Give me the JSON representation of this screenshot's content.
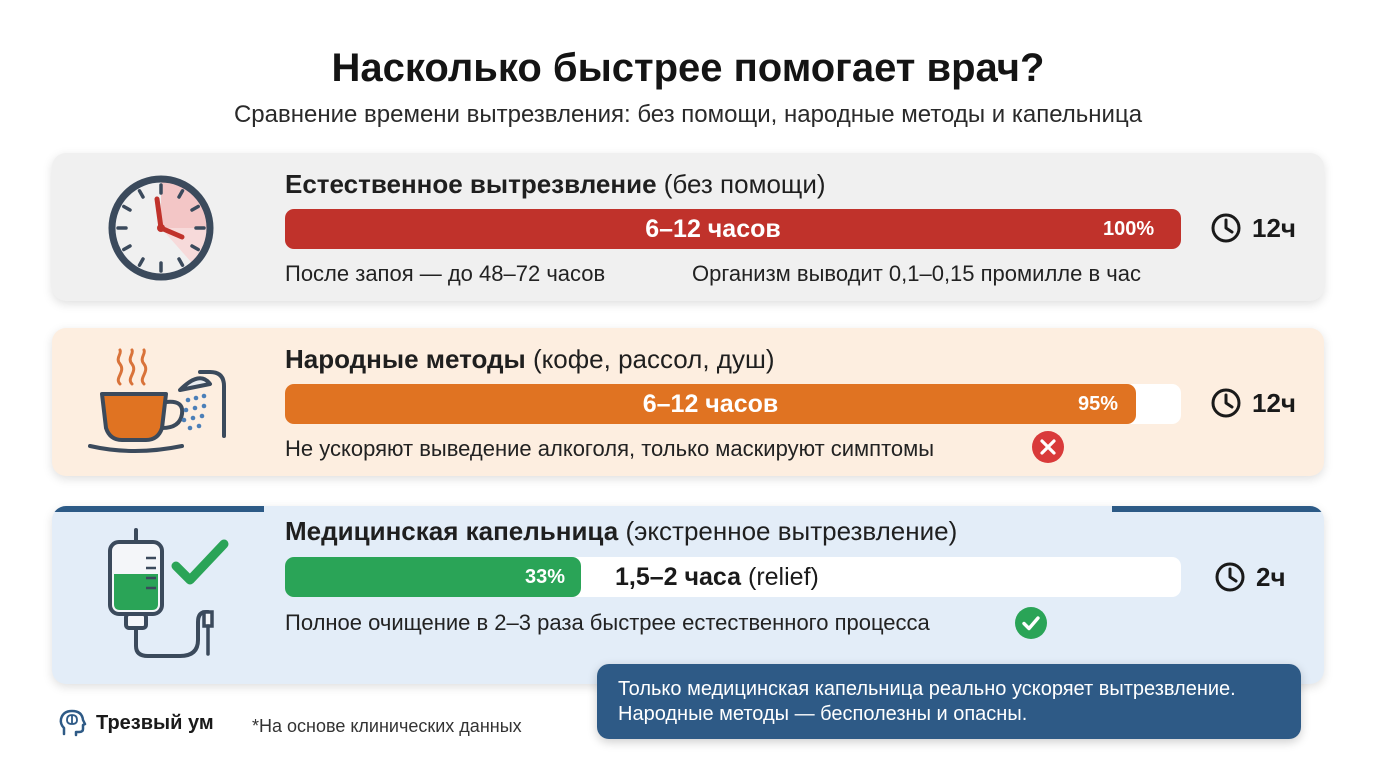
{
  "header": {
    "title": "Насколько быстрее помогает врач?",
    "subtitle": "Сравнение времени вытрезвления: без помощи, народные методы и капельница"
  },
  "rows": [
    {
      "title_bold": "Естественное вытрезвление",
      "title_rest": "(без помощи)",
      "bar_label": "6–12 часов",
      "percent_label": "100%",
      "percent": 100,
      "color": "#c0322b",
      "time": "12ч",
      "note_left": "После запоя — до 48–72 часов",
      "note_right": "Организм выводит 0,1–0,15 промилле в час",
      "icon": "clock-icon"
    },
    {
      "title_bold": "Народные методы",
      "title_rest": "(кофе, рассол, душ)",
      "bar_label": "6–12 часов",
      "percent_label": "95%",
      "percent": 95,
      "color": "#e07322",
      "time": "12ч",
      "note": "Не ускоряют выведение алкоголя, только маскируют симптомы",
      "status_icon": "cross-icon",
      "icon": "coffee-shower-icon"
    },
    {
      "title_bold": "Медицинская капельница",
      "title_rest": "(экстренное вытрезвление)",
      "bar_label_bold": "1,5–2 часа",
      "bar_label_rest": "(relief)",
      "percent_label": "33%",
      "percent": 33,
      "color": "#2aa457",
      "time": "2ч",
      "note": "Полное очищение в 2–3 раза быстрее естественного процесса",
      "status_icon": "check-icon",
      "icon": "iv-drip-icon"
    }
  ],
  "callout": {
    "line1": "Только медицинская капельница реально ускоряет вытрезвление.",
    "line2": "Народные методы — бесполезны и опасны."
  },
  "footer": {
    "brand": "Трезвый ум",
    "footnote": "*На основе клинических данных"
  },
  "colors": {
    "accent": "#2e5a86",
    "red": "#c0322b",
    "orange": "#e07322",
    "green": "#2aa457"
  }
}
